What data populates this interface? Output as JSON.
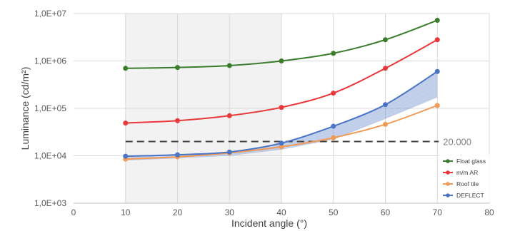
{
  "chart_data": {
    "type": "line",
    "y_scale": "log",
    "xlabel": "Incident angle (°)",
    "ylabel": "Luminance (cd/m²)",
    "xlim": [
      0,
      80
    ],
    "ylim": [
      1000,
      10000000
    ],
    "x_ticks": [
      "0",
      "10",
      "20",
      "30",
      "40",
      "50",
      "60",
      "70",
      "80"
    ],
    "y_ticks": [
      "1,0E+03",
      "1,0E+04",
      "1,0E+05",
      "1,0E+06",
      "1,0E+07"
    ],
    "highlight_x_range": [
      10,
      40
    ],
    "highlight_color": "#f2f2f2",
    "reference_line": {
      "value": 20000,
      "label": "20.000",
      "color": "#404040"
    },
    "legend_position": "bottom-right",
    "series": [
      {
        "name": "Float glass",
        "color": "#3a7d2c",
        "x": [
          10,
          20,
          30,
          40,
          50,
          60,
          70
        ],
        "y": [
          700000,
          730000,
          800000,
          1000000,
          1450000,
          2800000,
          7200000
        ]
      },
      {
        "name": "m/m AR",
        "color": "#e8383b",
        "x": [
          10,
          20,
          30,
          40,
          50,
          60,
          70
        ],
        "y": [
          49000,
          55000,
          70000,
          105000,
          210000,
          700000,
          2800000
        ]
      },
      {
        "name": "Roof tile",
        "color": "#f29a54",
        "x": [
          10,
          20,
          30,
          40,
          50,
          60,
          70
        ],
        "y": [
          8500,
          9500,
          11500,
          15500,
          24000,
          46000,
          115000
        ]
      },
      {
        "name": "DEFLECT",
        "color": "#4a74c4",
        "x": [
          10,
          20,
          30,
          40,
          50,
          60,
          70
        ],
        "y": [
          9800,
          10500,
          12000,
          18500,
          42000,
          120000,
          600000
        ]
      }
    ],
    "band": {
      "color": "#4a74c4",
      "x": [
        10,
        20,
        30,
        40,
        50,
        60,
        70
      ],
      "lower": [
        8000,
        8800,
        10000,
        13500,
        22000,
        60000,
        170000
      ],
      "upper": [
        9800,
        10500,
        12000,
        18500,
        42000,
        120000,
        600000
      ]
    }
  }
}
